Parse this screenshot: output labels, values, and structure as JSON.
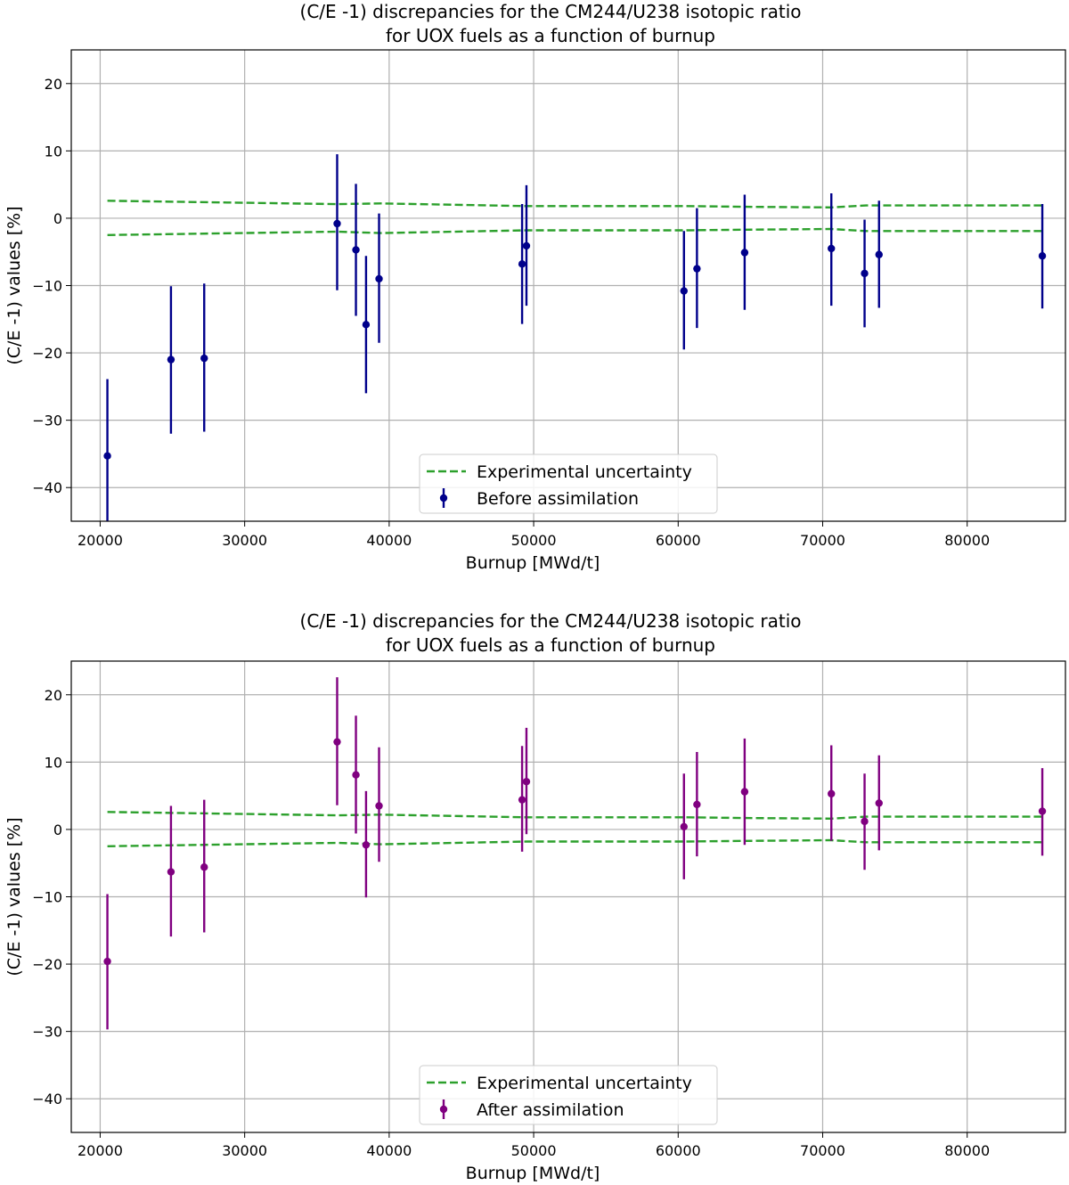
{
  "chart_data": [
    {
      "type": "scatter",
      "title_lines": [
        "(C/E -1) discrepancies for the CM244/U238 isotopic ratio",
        "for UOX fuels as a function of burnup"
      ],
      "xlabel": "Burnup [MWd/t]",
      "ylabel": "(C/E -1) values [%]",
      "xlim": [
        18000,
        86800
      ],
      "ylim": [
        -45,
        25
      ],
      "xticks": [
        20000,
        30000,
        40000,
        50000,
        60000,
        70000,
        80000
      ],
      "yticks": [
        20,
        10,
        0,
        -10,
        -20,
        -30,
        -40
      ],
      "xtick_labels": [
        "20000",
        "30000",
        "40000",
        "50000",
        "60000",
        "70000",
        "80000"
      ],
      "ytick_labels": [
        "20",
        "10",
        "0",
        "−10",
        "−20",
        "−30",
        "−40"
      ],
      "grid": true,
      "legend_position": "lower-center",
      "uncertainty_band": {
        "name": "Experimental uncertainty",
        "color": "#2ca02c",
        "style": "dashed",
        "x": [
          20500,
          36400,
          39400,
          49500,
          60500,
          64700,
          70600,
          73000,
          85200
        ],
        "upper": [
          2.6,
          2.1,
          2.2,
          1.8,
          1.8,
          1.7,
          1.6,
          1.9,
          1.9
        ],
        "lower": [
          -2.5,
          -2.0,
          -2.2,
          -1.8,
          -1.8,
          -1.7,
          -1.6,
          -1.9,
          -1.9
        ]
      },
      "series": [
        {
          "name": "Before assimilation",
          "color": "#00008b",
          "x": [
            20500,
            24900,
            27200,
            36400,
            37700,
            38400,
            39300,
            49200,
            49500,
            60400,
            61300,
            64600,
            70600,
            72900,
            73900,
            85200
          ],
          "y": [
            -35.3,
            -21.0,
            -20.8,
            -0.8,
            -4.7,
            -15.8,
            -9.0,
            -6.8,
            -4.1,
            -10.8,
            -7.5,
            -5.1,
            -4.5,
            -8.2,
            -5.4,
            -5.6
          ],
          "err_low": [
            -47,
            -32.0,
            -31.7,
            -10.7,
            -14.5,
            -26.0,
            -18.5,
            -15.7,
            -13.0,
            -19.5,
            -16.3,
            -13.6,
            -13.0,
            -16.2,
            -13.3,
            -13.4
          ],
          "err_high": [
            -23.9,
            -10.1,
            -9.7,
            9.5,
            5.1,
            -5.6,
            0.7,
            2.1,
            4.9,
            -1.9,
            1.5,
            3.5,
            3.7,
            -0.2,
            2.6,
            2.1
          ]
        }
      ]
    },
    {
      "type": "scatter",
      "title_lines": [
        "(C/E -1) discrepancies for the CM244/U238 isotopic ratio",
        "for UOX fuels as a function of burnup"
      ],
      "xlabel": "Burnup [MWd/t]",
      "ylabel": "(C/E -1) values [%]",
      "xlim": [
        18000,
        86800
      ],
      "ylim": [
        -45,
        25
      ],
      "xticks": [
        20000,
        30000,
        40000,
        50000,
        60000,
        70000,
        80000
      ],
      "yticks": [
        20,
        10,
        0,
        -10,
        -20,
        -30,
        -40
      ],
      "xtick_labels": [
        "20000",
        "30000",
        "40000",
        "50000",
        "60000",
        "70000",
        "80000"
      ],
      "ytick_labels": [
        "20",
        "10",
        "0",
        "−10",
        "−20",
        "−30",
        "−40"
      ],
      "grid": true,
      "legend_position": "lower-center",
      "uncertainty_band": {
        "name": "Experimental uncertainty",
        "color": "#2ca02c",
        "style": "dashed",
        "x": [
          20500,
          36400,
          39400,
          49500,
          60500,
          64700,
          70600,
          73000,
          85200
        ],
        "upper": [
          2.6,
          2.1,
          2.2,
          1.8,
          1.8,
          1.7,
          1.6,
          1.9,
          1.9
        ],
        "lower": [
          -2.5,
          -2.0,
          -2.2,
          -1.8,
          -1.8,
          -1.7,
          -1.6,
          -1.9,
          -1.9
        ]
      },
      "series": [
        {
          "name": "After assimilation",
          "color": "#800080",
          "x": [
            20500,
            24900,
            27200,
            36400,
            37700,
            38400,
            39300,
            49200,
            49500,
            60400,
            61300,
            64600,
            70600,
            72900,
            73900,
            85200
          ],
          "y": [
            -19.6,
            -6.3,
            -5.6,
            13.0,
            8.1,
            -2.3,
            3.5,
            4.4,
            7.1,
            0.4,
            3.7,
            5.6,
            5.3,
            1.2,
            3.9,
            2.7
          ],
          "err_low": [
            -29.7,
            -15.9,
            -15.3,
            3.6,
            -0.6,
            -10.1,
            -4.8,
            -3.3,
            -0.7,
            -7.4,
            -4.0,
            -2.3,
            -1.7,
            -6.0,
            -3.1,
            -3.9
          ],
          "err_high": [
            -9.6,
            3.5,
            4.4,
            22.6,
            16.9,
            5.7,
            12.2,
            12.4,
            15.1,
            8.3,
            11.5,
            13.5,
            12.5,
            8.3,
            11.0,
            9.1
          ]
        }
      ]
    }
  ]
}
